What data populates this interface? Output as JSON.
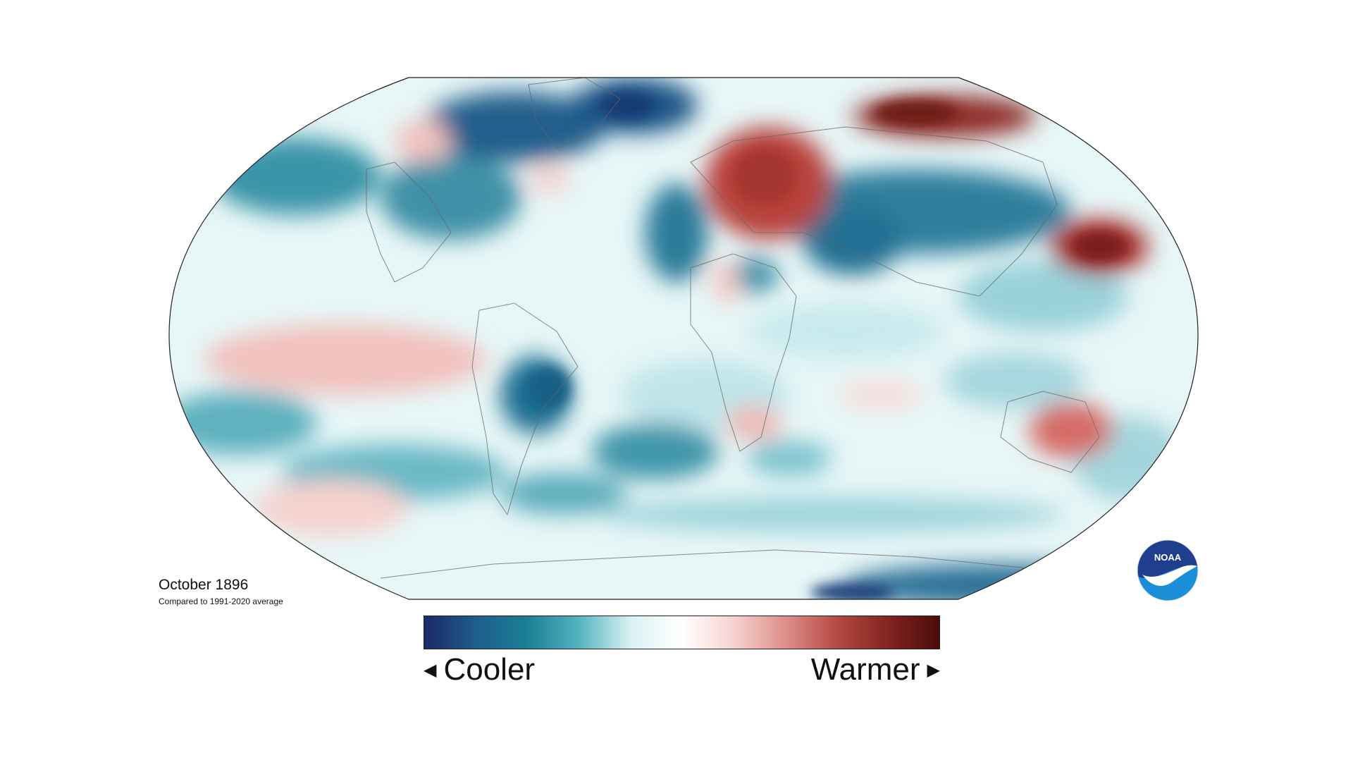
{
  "title": "October 1896",
  "subtitle": "Compared to 1991-2020 average",
  "legend": {
    "left_label": "Cooler",
    "right_label": "Warmer",
    "colors": [
      "#1b2a66",
      "#1f5d8c",
      "#1a7f95",
      "#55b3c0",
      "#d9f1f3",
      "#ffffff",
      "#f6d3d0",
      "#df8f8a",
      "#b54a44",
      "#842420",
      "#4a0c0c"
    ]
  },
  "logo": {
    "text": "NOAA",
    "colors": {
      "top": "#1f3f8e",
      "bottom": "#1a8fd8",
      "bird": "#ffffff"
    }
  },
  "map": {
    "projection": "Robinson",
    "ocean_base": "#e7f6f7",
    "anomaly_regions": [
      {
        "name": "Central Pacific",
        "type": "warm",
        "level": "moderate",
        "color": "#f4c8c4"
      },
      {
        "name": "South Pacific",
        "type": "warm",
        "level": "light",
        "color": "#f6d0cc"
      },
      {
        "name": "Western Russia",
        "type": "warm",
        "level": "strong",
        "color": "#b9433d"
      },
      {
        "name": "Northern Siberia",
        "type": "warm",
        "level": "strong",
        "color": "#8e2a25"
      },
      {
        "name": "North Pacific",
        "type": "warm",
        "level": "strong",
        "color": "#a93430"
      },
      {
        "name": "Eastern Australia",
        "type": "warm",
        "level": "moderate",
        "color": "#d56c66"
      },
      {
        "name": "Southern Africa",
        "type": "warm",
        "level": "light",
        "color": "#efb8b3"
      },
      {
        "name": "Canadian Arctic",
        "type": "cool",
        "level": "strong",
        "color": "#163c78"
      },
      {
        "name": "Greenland",
        "type": "cool",
        "level": "strong",
        "color": "#1d4a7c"
      },
      {
        "name": "Central Asia",
        "type": "cool",
        "level": "strong",
        "color": "#1a5f88"
      },
      {
        "name": "Brazil",
        "type": "cool",
        "level": "strong",
        "color": "#1b6e8e"
      },
      {
        "name": "South Atlantic",
        "type": "cool",
        "level": "moderate",
        "color": "#3f97aa"
      },
      {
        "name": "North America",
        "type": "cool",
        "level": "moderate",
        "color": "#2c849c"
      },
      {
        "name": "Antarctic coast",
        "type": "cool",
        "level": "strong",
        "color": "#1a5b86"
      }
    ]
  }
}
